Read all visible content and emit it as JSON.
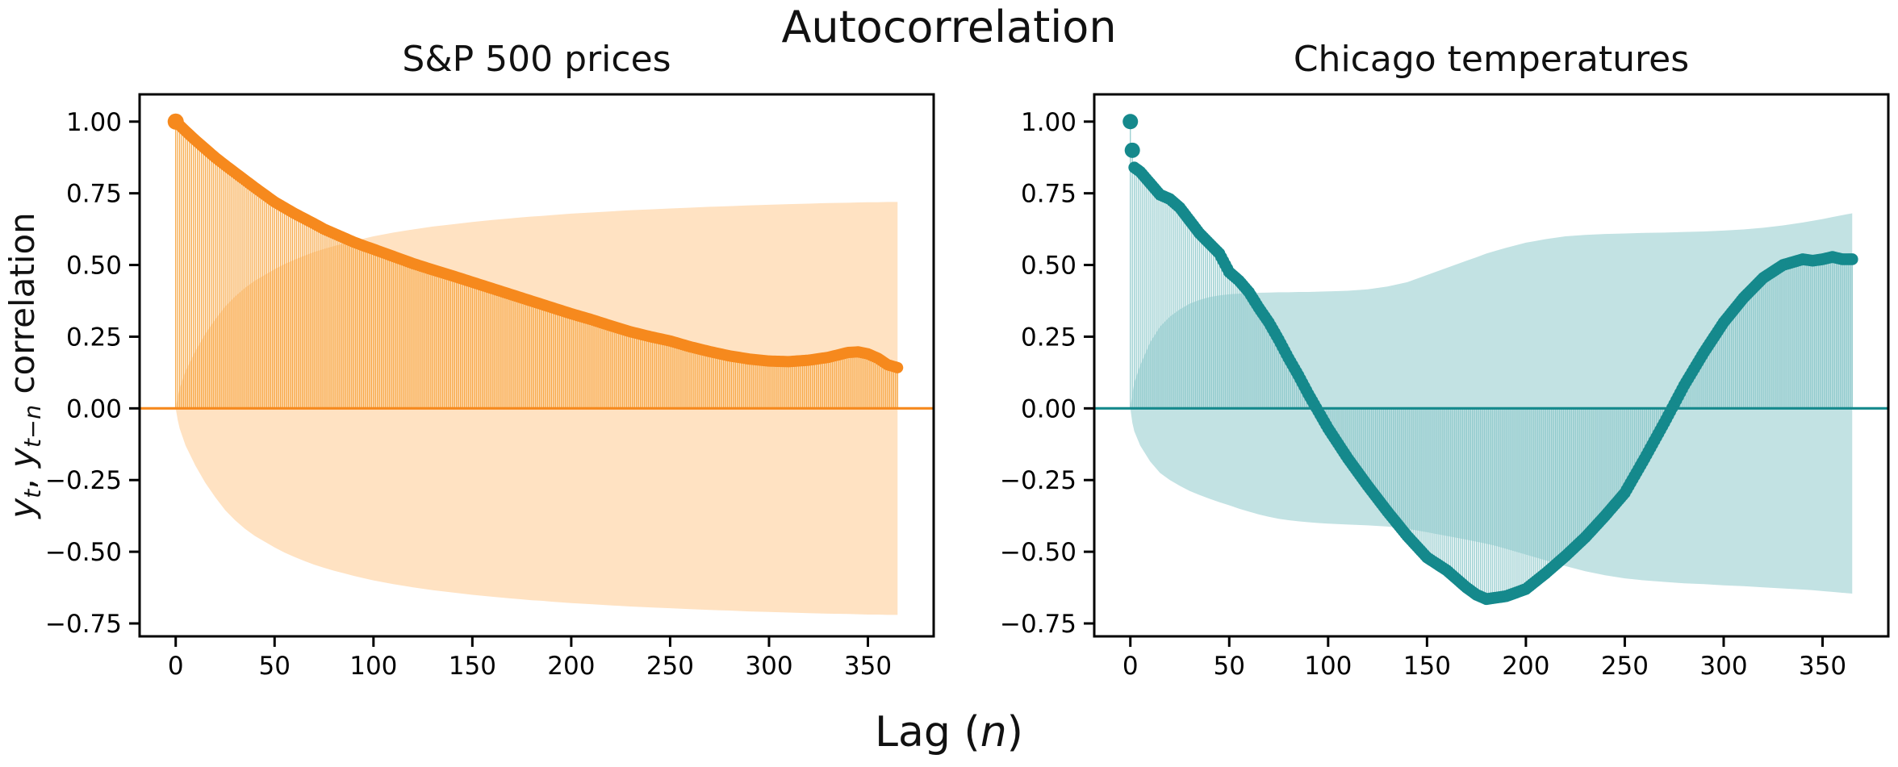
{
  "figure": {
    "suptitle": "Autocorrelation",
    "xlabel": {
      "prefix": "Lag (",
      "var": "n",
      "suffix": ")"
    },
    "ylabel": {
      "y1": "y",
      "sub1": "t",
      "sep": ", ",
      "y2": "y",
      "sub2": "t−n",
      "rest": " correlation"
    },
    "background": "#ffffff",
    "spine_color": "#000000",
    "tick_color": "#000000"
  },
  "axes": {
    "xlim": [
      -18.25,
      383.25
    ],
    "ylim": [
      -0.795,
      1.095
    ],
    "grid": false,
    "legend": "none",
    "xticks": {
      "values": [
        0,
        50,
        100,
        150,
        200,
        250,
        300,
        350
      ],
      "labels": [
        "0",
        "50",
        "100",
        "150",
        "200",
        "250",
        "300",
        "350"
      ]
    },
    "yticks": {
      "values": [
        1.0,
        0.75,
        0.5,
        0.25,
        0.0,
        -0.25,
        -0.5,
        -0.75
      ],
      "labels": [
        "1.00",
        "0.75",
        "0.50",
        "0.25",
        "0.00",
        "−0.25",
        "−0.50",
        "−0.75"
      ]
    }
  },
  "chart_data": [
    {
      "type": "line",
      "subtype": "stem-acf-with-confidence-band",
      "title": "S&P 500 prices",
      "marker": "thick-line",
      "colors": {
        "line": "#f6891d",
        "stem": "#f6a035",
        "band": "#ffe2c2",
        "zero_line": "#f6891d"
      },
      "xlim": [
        -18.25,
        383.25
      ],
      "ylim": [
        -0.795,
        1.095
      ],
      "lags": [
        0,
        1,
        2,
        5,
        10,
        15,
        20,
        25,
        30,
        35,
        40,
        45,
        50,
        55,
        60,
        65,
        70,
        75,
        80,
        85,
        90,
        95,
        100,
        110,
        120,
        130,
        140,
        150,
        160,
        170,
        175,
        180,
        185,
        190,
        200,
        210,
        220,
        230,
        240,
        250,
        260,
        270,
        280,
        290,
        300,
        310,
        320,
        330,
        340,
        345,
        350,
        355,
        360,
        365
      ],
      "acf": [
        1.0,
        0.993,
        0.987,
        0.967,
        0.935,
        0.905,
        0.875,
        0.848,
        0.822,
        0.796,
        0.77,
        0.745,
        0.72,
        0.7,
        0.68,
        0.662,
        0.644,
        0.625,
        0.61,
        0.595,
        0.58,
        0.567,
        0.555,
        0.53,
        0.505,
        0.483,
        0.462,
        0.44,
        0.418,
        0.396,
        0.385,
        0.374,
        0.363,
        0.352,
        0.33,
        0.31,
        0.288,
        0.267,
        0.25,
        0.235,
        0.215,
        0.198,
        0.183,
        0.172,
        0.165,
        0.163,
        0.168,
        0.178,
        0.195,
        0.197,
        0.19,
        0.175,
        0.152,
        0.142
      ],
      "band_upper": [
        0.0,
        0.04,
        0.07,
        0.13,
        0.2,
        0.26,
        0.31,
        0.355,
        0.39,
        0.42,
        0.445,
        0.465,
        0.485,
        0.503,
        0.518,
        0.532,
        0.545,
        0.556,
        0.566,
        0.575,
        0.584,
        0.592,
        0.6,
        0.613,
        0.624,
        0.634,
        0.642,
        0.65,
        0.657,
        0.663,
        0.666,
        0.669,
        0.671,
        0.674,
        0.679,
        0.683,
        0.687,
        0.691,
        0.694,
        0.697,
        0.7,
        0.703,
        0.705,
        0.708,
        0.71,
        0.712,
        0.714,
        0.716,
        0.717,
        0.718,
        0.719,
        0.719,
        0.72,
        0.72
      ],
      "band_lower": [
        0.0,
        -0.04,
        -0.07,
        -0.13,
        -0.2,
        -0.26,
        -0.31,
        -0.355,
        -0.39,
        -0.42,
        -0.445,
        -0.465,
        -0.485,
        -0.503,
        -0.518,
        -0.532,
        -0.545,
        -0.556,
        -0.566,
        -0.575,
        -0.584,
        -0.592,
        -0.6,
        -0.613,
        -0.624,
        -0.634,
        -0.642,
        -0.65,
        -0.657,
        -0.663,
        -0.666,
        -0.669,
        -0.671,
        -0.674,
        -0.679,
        -0.683,
        -0.687,
        -0.691,
        -0.694,
        -0.697,
        -0.7,
        -0.703,
        -0.705,
        -0.708,
        -0.71,
        -0.712,
        -0.714,
        -0.716,
        -0.717,
        -0.718,
        -0.719,
        -0.719,
        -0.72,
        -0.72
      ]
    },
    {
      "type": "line",
      "subtype": "stem-acf-with-confidence-band",
      "title": "Chicago temperatures",
      "marker": "dots",
      "colors": {
        "line": "#15898c",
        "stem": "#8ac7c9",
        "band": "#c2e2e3",
        "zero_line": "#15898c"
      },
      "xlim": [
        -18.25,
        383.25
      ],
      "ylim": [
        -0.795,
        1.095
      ],
      "lags": [
        0,
        1,
        2,
        5,
        10,
        15,
        20,
        25,
        30,
        35,
        40,
        45,
        50,
        55,
        60,
        65,
        70,
        75,
        80,
        85,
        90,
        95,
        100,
        110,
        120,
        130,
        140,
        150,
        160,
        170,
        175,
        180,
        185,
        190,
        200,
        210,
        220,
        230,
        240,
        250,
        260,
        270,
        280,
        290,
        300,
        310,
        320,
        330,
        340,
        345,
        350,
        355,
        360,
        365
      ],
      "acf": [
        1.0,
        0.9,
        0.84,
        0.825,
        0.785,
        0.745,
        0.73,
        0.7,
        0.655,
        0.61,
        0.575,
        0.54,
        0.475,
        0.445,
        0.405,
        0.35,
        0.3,
        0.24,
        0.175,
        0.115,
        0.05,
        -0.01,
        -0.07,
        -0.175,
        -0.27,
        -0.36,
        -0.445,
        -0.52,
        -0.565,
        -0.625,
        -0.65,
        -0.665,
        -0.66,
        -0.655,
        -0.63,
        -0.575,
        -0.515,
        -0.45,
        -0.375,
        -0.295,
        -0.175,
        -0.05,
        0.08,
        0.195,
        0.3,
        0.385,
        0.455,
        0.5,
        0.52,
        0.515,
        0.52,
        0.528,
        0.52,
        0.52
      ],
      "band_upper": [
        0.0,
        0.05,
        0.09,
        0.15,
        0.23,
        0.285,
        0.32,
        0.345,
        0.365,
        0.378,
        0.388,
        0.394,
        0.398,
        0.4,
        0.402,
        0.403,
        0.404,
        0.405,
        0.405,
        0.406,
        0.406,
        0.407,
        0.408,
        0.41,
        0.415,
        0.425,
        0.44,
        0.465,
        0.49,
        0.515,
        0.527,
        0.54,
        0.55,
        0.56,
        0.578,
        0.59,
        0.6,
        0.605,
        0.608,
        0.61,
        0.612,
        0.613,
        0.615,
        0.617,
        0.62,
        0.624,
        0.63,
        0.638,
        0.648,
        0.654,
        0.66,
        0.667,
        0.674,
        0.68
      ],
      "band_lower": [
        0.0,
        -0.05,
        -0.08,
        -0.13,
        -0.185,
        -0.225,
        -0.25,
        -0.27,
        -0.288,
        -0.302,
        -0.315,
        -0.327,
        -0.338,
        -0.35,
        -0.36,
        -0.37,
        -0.378,
        -0.385,
        -0.39,
        -0.394,
        -0.397,
        -0.4,
        -0.402,
        -0.405,
        -0.408,
        -0.412,
        -0.42,
        -0.432,
        -0.445,
        -0.458,
        -0.465,
        -0.472,
        -0.48,
        -0.49,
        -0.51,
        -0.53,
        -0.55,
        -0.568,
        -0.582,
        -0.593,
        -0.6,
        -0.605,
        -0.61,
        -0.613,
        -0.617,
        -0.62,
        -0.624,
        -0.628,
        -0.632,
        -0.634,
        -0.637,
        -0.64,
        -0.643,
        -0.646
      ]
    }
  ]
}
